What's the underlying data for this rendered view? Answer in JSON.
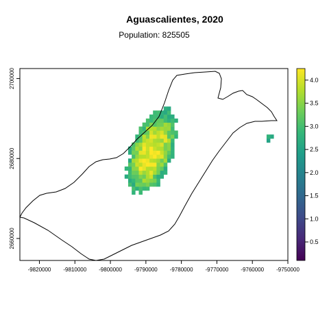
{
  "title": "Aguascalientes, 2020",
  "subtitle": "Population: 825505",
  "map": {
    "x_ticks": [
      -9820000,
      -9810000,
      -9800000,
      -9790000,
      -9780000,
      -9770000,
      -9760000,
      -9750000
    ],
    "x_tick_labels": [
      "-9820000",
      "-9810000",
      "-9800000",
      "-9790000",
      "-9780000",
      "-9770000",
      "-9760000",
      "-9750000"
    ],
    "y_ticks": [
      2660000,
      2680000,
      2700000
    ],
    "y_tick_labels": [
      "2660000",
      "2680000",
      "2700000"
    ],
    "xlim": [
      -9825500,
      -9750000
    ],
    "ylim": [
      2654500,
      2702500
    ],
    "cell_size": 1000,
    "fill_variable_range": [
      0.1,
      4.25
    ]
  },
  "legend": {
    "ticks": [
      0.5,
      1.0,
      1.5,
      2.0,
      2.5,
      3.0,
      3.5,
      4.0
    ],
    "tick_labels": [
      "0.5",
      "1.0",
      "1.5",
      "2.0",
      "2.5",
      "3.0",
      "3.5",
      "4.0"
    ],
    "range": [
      0.1,
      4.25
    ],
    "colormap": "viridis",
    "colors": [
      "#440154",
      "#482878",
      "#3e4a89",
      "#31688e",
      "#26828e",
      "#1f9e89",
      "#35b779",
      "#6ece58",
      "#b5de2b",
      "#fde725"
    ]
  }
}
